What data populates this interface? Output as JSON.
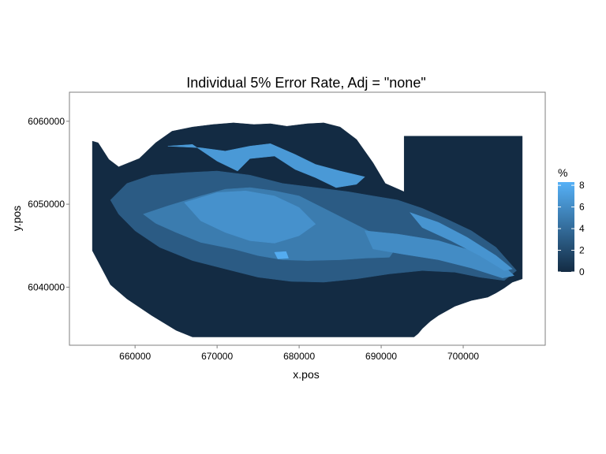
{
  "chart_data": {
    "type": "heatmap",
    "title": "Individual 5% Error Rate, Adj = \"none\"",
    "xlabel": "x.pos",
    "ylabel": "y.pos",
    "xlim": [
      652000,
      710000
    ],
    "ylim": [
      6033000,
      6063500
    ],
    "x_ticks": [
      660000,
      670000,
      680000,
      690000,
      700000
    ],
    "x_tick_labels": [
      "660000",
      "670000",
      "680000",
      "690000",
      "700000"
    ],
    "y_ticks": [
      6040000,
      6050000,
      6060000
    ],
    "y_tick_labels": [
      "6040000",
      "6050000",
      "6060000"
    ],
    "legend": {
      "title": "%",
      "placement": "right",
      "range": [
        0,
        8.3
      ],
      "ticks": [
        0,
        2,
        4,
        6,
        8
      ],
      "tick_labels": [
        "0",
        "2",
        "4",
        "6",
        "8"
      ],
      "color_low": "#132b43",
      "color_high": "#56b1f7"
    },
    "regions": [
      {
        "value": 0,
        "polygon": [
          [
            654800,
            6057600
          ],
          [
            655500,
            6057400
          ],
          [
            656800,
            6055400
          ],
          [
            658000,
            6054500
          ],
          [
            660500,
            6055500
          ],
          [
            662500,
            6057400
          ],
          [
            664500,
            6058800
          ],
          [
            667000,
            6059300
          ],
          [
            669500,
            6059600
          ],
          [
            672000,
            6059800
          ],
          [
            674500,
            6059600
          ],
          [
            676500,
            6059700
          ],
          [
            678500,
            6059400
          ],
          [
            681000,
            6059700
          ],
          [
            683000,
            6059800
          ],
          [
            685000,
            6059300
          ],
          [
            687000,
            6057800
          ],
          [
            689000,
            6055000
          ],
          [
            690500,
            6052500
          ],
          [
            692800,
            6051500
          ],
          [
            692800,
            6058200
          ],
          [
            707200,
            6058200
          ],
          [
            707200,
            6041000
          ],
          [
            706000,
            6040600
          ],
          [
            705000,
            6039900
          ],
          [
            704000,
            6039300
          ],
          [
            703000,
            6038800
          ],
          [
            701000,
            6038400
          ],
          [
            699000,
            6037700
          ],
          [
            697000,
            6036600
          ],
          [
            696000,
            6035900
          ],
          [
            695000,
            6035000
          ],
          [
            694500,
            6034400
          ],
          [
            694000,
            6034000
          ],
          [
            667000,
            6034000
          ],
          [
            665000,
            6034800
          ],
          [
            662000,
            6036600
          ],
          [
            659000,
            6038600
          ],
          [
            657000,
            6040300
          ],
          [
            654800,
            6044400
          ]
        ]
      },
      {
        "value": 3,
        "polygon": [
          [
            657000,
            6050500
          ],
          [
            659000,
            6052500
          ],
          [
            662000,
            6053500
          ],
          [
            666000,
            6053800
          ],
          [
            670000,
            6054000
          ],
          [
            674000,
            6053500
          ],
          [
            678000,
            6052500
          ],
          [
            682000,
            6052000
          ],
          [
            686000,
            6051500
          ],
          [
            689000,
            6051000
          ],
          [
            692000,
            6050500
          ],
          [
            695000,
            6049500
          ],
          [
            698000,
            6048200
          ],
          [
            701000,
            6046800
          ],
          [
            704000,
            6044800
          ],
          [
            706500,
            6042000
          ],
          [
            705000,
            6040800
          ],
          [
            702000,
            6041200
          ],
          [
            699000,
            6041800
          ],
          [
            695000,
            6042000
          ],
          [
            691000,
            6041600
          ],
          [
            687000,
            6041000
          ],
          [
            683000,
            6040600
          ],
          [
            679000,
            6040700
          ],
          [
            675000,
            6041200
          ],
          [
            671000,
            6042200
          ],
          [
            667000,
            6043200
          ],
          [
            663000,
            6044800
          ],
          [
            660000,
            6046800
          ],
          [
            658000,
            6048800
          ]
        ]
      },
      {
        "value": 5,
        "polygon": [
          [
            661000,
            6048800
          ],
          [
            664000,
            6049800
          ],
          [
            668000,
            6051000
          ],
          [
            671000,
            6051800
          ],
          [
            674000,
            6052000
          ],
          [
            677000,
            6051600
          ],
          [
            680000,
            6051000
          ],
          [
            683000,
            6049500
          ],
          [
            686000,
            6048000
          ],
          [
            689000,
            6046500
          ],
          [
            692000,
            6045000
          ],
          [
            691000,
            6043600
          ],
          [
            688000,
            6043500
          ],
          [
            685000,
            6043300
          ],
          [
            681000,
            6043200
          ],
          [
            678000,
            6043300
          ],
          [
            675000,
            6043800
          ],
          [
            672000,
            6044600
          ],
          [
            668000,
            6045400
          ],
          [
            665000,
            6046600
          ],
          [
            662500,
            6047700
          ]
        ]
      },
      {
        "value": 6.3,
        "polygon": [
          [
            666000,
            6050200
          ],
          [
            670000,
            6051400
          ],
          [
            673500,
            6051600
          ],
          [
            677000,
            6051000
          ],
          [
            680000,
            6049600
          ],
          [
            682000,
            6047600
          ],
          [
            680000,
            6046200
          ],
          [
            677000,
            6045300
          ],
          [
            674000,
            6045600
          ],
          [
            671000,
            6046600
          ],
          [
            668000,
            6048000
          ]
        ]
      },
      {
        "value": 6.8,
        "polygon": [
          [
            664000,
            6057000
          ],
          [
            667000,
            6057200
          ],
          [
            670000,
            6055200
          ],
          [
            672500,
            6054000
          ],
          [
            674000,
            6055500
          ],
          [
            677000,
            6055800
          ],
          [
            679500,
            6054200
          ],
          [
            682000,
            6053200
          ],
          [
            684500,
            6052000
          ],
          [
            687000,
            6052400
          ],
          [
            688000,
            6053300
          ],
          [
            685000,
            6054000
          ],
          [
            682000,
            6054800
          ],
          [
            679500,
            6056000
          ],
          [
            676500,
            6057300
          ],
          [
            674000,
            6057000
          ],
          [
            671000,
            6056400
          ],
          [
            668000,
            6056800
          ]
        ]
      },
      {
        "value": 6,
        "polygon": [
          [
            688000,
            6046800
          ],
          [
            692000,
            6046400
          ],
          [
            697000,
            6045600
          ],
          [
            701000,
            6044400
          ],
          [
            705000,
            6042500
          ],
          [
            706200,
            6041400
          ],
          [
            704800,
            6041100
          ],
          [
            701000,
            6042300
          ],
          [
            697000,
            6043300
          ],
          [
            692500,
            6044000
          ],
          [
            689000,
            6044600
          ]
        ]
      },
      {
        "value": 6.5,
        "polygon": [
          [
            693500,
            6049000
          ],
          [
            697000,
            6047800
          ],
          [
            700500,
            6046000
          ],
          [
            704000,
            6043800
          ],
          [
            706000,
            6042200
          ],
          [
            705000,
            6042000
          ],
          [
            702000,
            6043800
          ],
          [
            698500,
            6045600
          ],
          [
            695000,
            6047200
          ]
        ]
      },
      {
        "value": 8,
        "polygon": [
          [
            677000,
            6044200
          ],
          [
            678400,
            6044300
          ],
          [
            678700,
            6043500
          ],
          [
            677400,
            6043400
          ]
        ]
      }
    ]
  }
}
